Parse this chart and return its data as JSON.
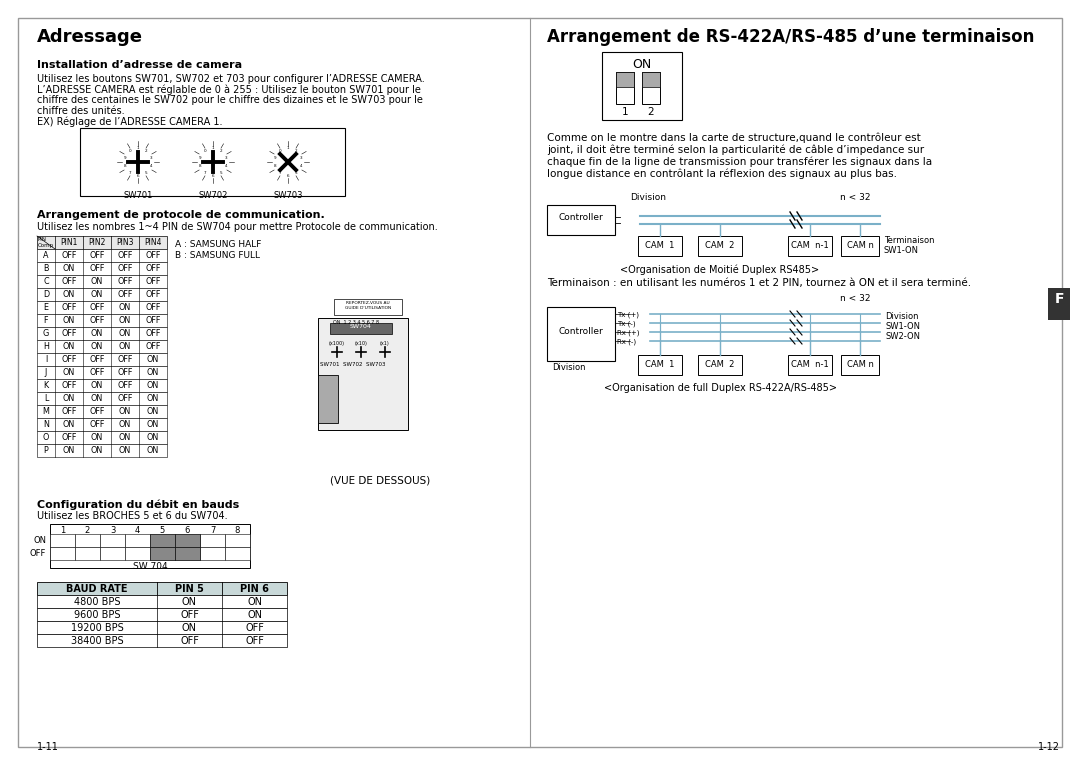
{
  "left_title": "Adressage",
  "right_title": "Arrangement de RS-422A/RS-485 d’une terminaison",
  "section1_title": "Installation d’adresse de camera",
  "section1_lines": [
    "Utilisez les boutons SW701, SW702 et 703 pour configurer l’ADRESSE CAMERA.",
    "L’ADRESSE CAMERA est réglable de 0 à 255 : Utilisez le bouton SW701 pour le",
    "chiffre des centaines le SW702 pour le chiffre des dizaines et le SW703 pour le",
    "chiffre des unités.",
    "EX) Réglage de l’ADRESSE CAMERA 1."
  ],
  "sw_labels": [
    "SW701",
    "SW702",
    "SW703"
  ],
  "section2_title": "Arrangement de protocole de communication.",
  "section2_text": "Utilisez les nombres 1~4 PIN de SW704 pour mettre Protocole de communication.",
  "pin_table_data": [
    [
      "A",
      "OFF",
      "OFF",
      "OFF",
      "OFF"
    ],
    [
      "B",
      "ON",
      "OFF",
      "OFF",
      "OFF"
    ],
    [
      "C",
      "OFF",
      "ON",
      "OFF",
      "OFF"
    ],
    [
      "D",
      "ON",
      "ON",
      "OFF",
      "OFF"
    ],
    [
      "E",
      "OFF",
      "OFF",
      "ON",
      "OFF"
    ],
    [
      "F",
      "ON",
      "OFF",
      "ON",
      "OFF"
    ],
    [
      "G",
      "OFF",
      "ON",
      "ON",
      "OFF"
    ],
    [
      "H",
      "ON",
      "ON",
      "ON",
      "OFF"
    ],
    [
      "I",
      "OFF",
      "OFF",
      "OFF",
      "ON"
    ],
    [
      "J",
      "ON",
      "OFF",
      "OFF",
      "ON"
    ],
    [
      "K",
      "OFF",
      "ON",
      "OFF",
      "ON"
    ],
    [
      "L",
      "ON",
      "ON",
      "OFF",
      "ON"
    ],
    [
      "M",
      "OFF",
      "OFF",
      "ON",
      "ON"
    ],
    [
      "N",
      "ON",
      "OFF",
      "ON",
      "ON"
    ],
    [
      "O",
      "OFF",
      "ON",
      "ON",
      "ON"
    ],
    [
      "P",
      "ON",
      "ON",
      "ON",
      "ON"
    ]
  ],
  "legend_a": "A : SAMSUNG HALF",
  "legend_b": "B : SAMSUNG FULL",
  "vue_label": "(VUE DE DESSOUS)",
  "section3_title": "Configuration du débit en bauds",
  "section3_text": "Utilisez les BROCHES 5 et 6 du SW704.",
  "sw704_label": "SW 704",
  "baud_table_header": [
    "BAUD RATE",
    "PIN 5",
    "PIN 6"
  ],
  "baud_table_data": [
    [
      "4800 BPS",
      "ON",
      "ON"
    ],
    [
      "9600 BPS",
      "OFF",
      "ON"
    ],
    [
      "19200 BPS",
      "ON",
      "OFF"
    ],
    [
      "38400 BPS",
      "OFF",
      "OFF"
    ]
  ],
  "right_body": [
    "Comme on le montre dans la carte de structure,quand le contrôleur est",
    "joint, il doit être terminé selon la particularité de câble d’impedance sur",
    "chaque fin de la ligne de transmission pour transférer les signaux dans la",
    "longue distance en contrôlant la réflexion des signaux au plus bas."
  ],
  "diagram1_caption": "<Organisation de Moitié Duplex RS485>",
  "term_text": "Terminaison : en utilisant les numéros 1 et 2 PIN, tournez à ON et il sera terminé.",
  "diagram2_caption": "<Organisation de full Duplex RS-422A/RS-485>",
  "page_left": "1-11",
  "page_right": "1-12",
  "tab_label": "F",
  "table_header_bg": "#c8d8d8",
  "diagram_line_color": "#7ab0c8"
}
